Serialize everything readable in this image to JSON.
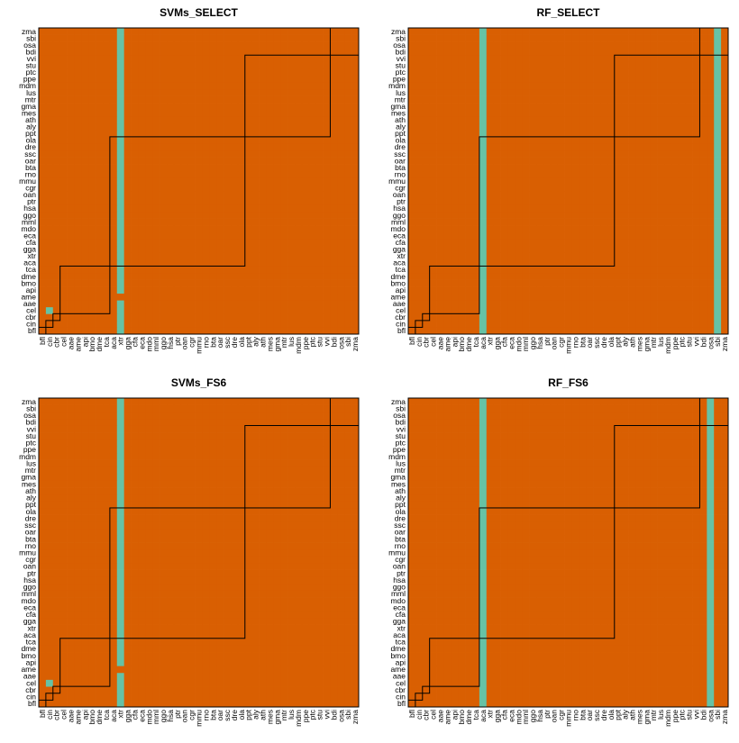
{
  "figure": {
    "colors": {
      "zero": "#d95f02",
      "one": "#66c2a5",
      "frame": "#000000",
      "background": "#ffffff"
    },
    "species": [
      "bfl",
      "cin",
      "cbr",
      "cel",
      "aae",
      "ame",
      "api",
      "bmo",
      "dme",
      "tca",
      "aca",
      "xtr",
      "gga",
      "cfa",
      "eca",
      "mdo",
      "mml",
      "ggo",
      "hsa",
      "ptr",
      "oan",
      "cgr",
      "mmu",
      "rno",
      "bta",
      "oar",
      "ssc",
      "dre",
      "ola",
      "ppt",
      "aly",
      "ath",
      "mes",
      "gma",
      "mtr",
      "lus",
      "mdm",
      "ppe",
      "ptc",
      "stu",
      "vvi",
      "bdi",
      "osa",
      "sbi",
      "zma"
    ]
  },
  "chart_data": [
    {
      "type": "heatmap",
      "title": "SVMs_SELECT",
      "xlabel": "",
      "ylabel": "",
      "legend": "none",
      "grid": false,
      "clades": [
        [
          0,
          0
        ],
        [
          1,
          1
        ],
        [
          2,
          2
        ],
        [
          3,
          9
        ],
        [
          10,
          28
        ],
        [
          29,
          40
        ],
        [
          41,
          44
        ]
      ],
      "color_values": {
        "zero": "#d95f02",
        "one": "#66c2a5"
      },
      "rows": [
        "000000000001000000000000000000000000000000000",
        "000000000001000000000000000000000000000000000",
        "000000000001000000000000000000000000000000000",
        "010000000001000000000000000000000000000000000",
        "000000000001000000000000000000000000000000000",
        "000000000000000000000000000000000000000000000",
        "000000000001000000000000000000000000000000000",
        "000000000001000000000000000000000000000000000",
        "000000000001000000000000000000000000000000000",
        "000000000001000000000000000000000000000000000",
        "000000000001000000000000000000000000000000000",
        "000000000001000000000000000000000000000000000",
        "000000000001000000000000000000000000000000000",
        "000000000001000000000000000000000000000000000",
        "000000000001000000000000000000000000000000000",
        "000000000001000000000000000000000000000000000",
        "000000000001000000000000000000000000000000000",
        "000000000001000000000000000000000000000000000",
        "000000000001000000000000000000000000000000000",
        "000000000001000000000000000000000000000000000",
        "000000000001000000000000000000000000000000000",
        "000000000001000000000000000000000000000000000",
        "000000000001000000000000000000000000000000000",
        "000000000001000000000000000000000000000000000",
        "000000000001000000000000000000000000000000000",
        "000000000001000000000000000000000000000000000",
        "000000000001000000000000000000000000000000000",
        "000000000001000000000000000000000000000000000",
        "000000000001000000000000000000000000000000000",
        "000000000001000000000000000000000000000000000",
        "000000000001000000000000000000000000000000000",
        "000000000001000000000000000000000000000000000",
        "000000000001000000000000000000000000000000000",
        "000000000001000000000000000000000000000000000",
        "000000000001000000000000000000000000000000000",
        "000000000001000000000000000000000000000000000",
        "000000000001000000000000000000000000000000000",
        "000000000001000000000000000000000000000000000",
        "000000000001000000000000000000000000000000000",
        "000000000001000000000000000000000000000000000",
        "000000000001000000000000000000000000000000000",
        "000000000001000000000000000000000000000000000",
        "000000000001000000000000000000000000000000000",
        "000000000001000000000000000000000000000000000",
        "000000000001000000000000000000000000000000000"
      ]
    },
    {
      "type": "heatmap",
      "title": "RF_SELECT",
      "xlabel": "",
      "ylabel": "",
      "legend": "none",
      "grid": false,
      "clades": [
        [
          0,
          0
        ],
        [
          1,
          1
        ],
        [
          2,
          2
        ],
        [
          3,
          9
        ],
        [
          10,
          28
        ],
        [
          29,
          40
        ],
        [
          41,
          44
        ]
      ],
      "color_values": {
        "zero": "#d95f02",
        "one": "#66c2a5"
      },
      "rows": [
        "000000000010000000000000000000000000000000010",
        "000000000010000000000000000000000000000000010",
        "000000000010000000000000000000000000000000010",
        "000000000010000000000000000000000000000000010",
        "000000000010000000000000000000000000000000010",
        "000000000010000000000000000000000000000000010",
        "000000000010000000000000000000000000000000010",
        "000000000010000000000000000000000000000000010",
        "000000000010000000000000000000000000000000010",
        "000000000010000000000000000000000000000000010",
        "000000000010000000000000000000000000000000010",
        "000000000010000000000000000000000000000000010",
        "000000000010000000000000000000000000000000010",
        "000000000010000000000000000000000000000000010",
        "000000000010000000000000000000000000000000010",
        "000000000010000000000000000000000000000000010",
        "000000000010000000000000000000000000000000010",
        "000000000010000000000000000000000000000000010",
        "000000000010000000000000000000000000000000010",
        "000000000010000000000000000000000000000000010",
        "000000000010000000000000000000000000000000010",
        "000000000010000000000000000000000000000000010",
        "000000000010000000000000000000000000000000010",
        "000000000010000000000000000000000000000000010",
        "000000000010000000000000000000000000000000010",
        "000000000010000000000000000000000000000000010",
        "000000000010000000000000000000000000000000010",
        "000000000010000000000000000000000000000000010",
        "000000000010000000000000000000000000000000010",
        "000000000010000000000000000000000000000000010",
        "000000000010000000000000000000000000000000010",
        "000000000010000000000000000000000000000000010",
        "000000000010000000000000000000000000000000010",
        "000000000010000000000000000000000000000000010",
        "000000000010000000000000000000000000000000010",
        "000000000010000000000000000000000000000000010",
        "000000000010000000000000000000000000000000010",
        "000000000010000000000000000000000000000000010",
        "000000000010000000000000000000000000000000010",
        "000000000010000000000000000000000000000000010",
        "000000000010000000000000000000000000000000010",
        "000000000010000000000000000000000000000000010",
        "000000000010000000000000000000000000000000010",
        "000000000010000000000000000000000000000000010",
        "000000000010000000000000000000000000000000010"
      ]
    },
    {
      "type": "heatmap",
      "title": "SVMs_FS6",
      "xlabel": "",
      "ylabel": "",
      "legend": "none",
      "grid": false,
      "clades": [
        [
          0,
          0
        ],
        [
          1,
          1
        ],
        [
          2,
          2
        ],
        [
          3,
          9
        ],
        [
          10,
          28
        ],
        [
          29,
          40
        ],
        [
          41,
          44
        ]
      ],
      "color_values": {
        "zero": "#d95f02",
        "one": "#66c2a5"
      },
      "rows": [
        "000000000001000000000000000000000000000000000",
        "000000000001000000000000000000000000000000000",
        "000000000001000000000000000000000000000000000",
        "010000000001000000000000000000000000000000000",
        "000000000001000000000000000000000000000000000",
        "000000000000000000000000000000000000000000000",
        "000000000001000000000000000000000000000000000",
        "000000000001000000000000000000000000000000000",
        "000000000001000000000000000000000000000000000",
        "000000000001000000000000000000000000000000000",
        "000000000001000000000000000000000000000000000",
        "000000000001000000000000000000000000000000000",
        "000000000001000000000000000000000000000000000",
        "000000000001000000000000000000000000000000000",
        "000000000001000000000000000000000000000000000",
        "000000000001000000000000000000000000000000000",
        "000000000001000000000000000000000000000000000",
        "000000000001000000000000000000000000000000000",
        "000000000001000000000000000000000000000000000",
        "000000000001000000000000000000000000000000000",
        "000000000001000000000000000000000000000000000",
        "000000000001000000000000000000000000000000000",
        "000000000001000000000000000000000000000000000",
        "000000000001000000000000000000000000000000000",
        "000000000001000000000000000000000000000000000",
        "000000000001000000000000000000000000000000000",
        "000000000001000000000000000000000000000000000",
        "000000000001000000000000000000000000000000000",
        "000000000001000000000000000000000000000000000",
        "000000000001000000000000000000000000000000000",
        "000000000001000000000000000000000000000000000",
        "000000000001000000000000000000000000000000000",
        "000000000001000000000000000000000000000000000",
        "000000000001000000000000000000000000000000000",
        "000000000001000000000000000000000000000000000",
        "000000000001000000000000000000000000000000000",
        "000000000001000000000000000000000000000000000",
        "000000000001000000000000000000000000000000000",
        "000000000001000000000000000000000000000000000",
        "000000000001000000000000000000000000000000000",
        "000000000001000000000000000000000000000000000",
        "000000000001000000000000000000000000000000000",
        "000000000001000000000000000000000000000000000",
        "000000000001000000000000000000000000000000000",
        "000000000001000000000000000000000000000000000"
      ]
    },
    {
      "type": "heatmap",
      "title": "RF_FS6",
      "xlabel": "",
      "ylabel": "",
      "legend": "none",
      "grid": false,
      "clades": [
        [
          0,
          0
        ],
        [
          1,
          1
        ],
        [
          2,
          2
        ],
        [
          3,
          9
        ],
        [
          10,
          28
        ],
        [
          29,
          40
        ],
        [
          41,
          44
        ]
      ],
      "color_values": {
        "zero": "#d95f02",
        "one": "#66c2a5"
      },
      "rows": [
        "000000000010000000000000000000000000000000100",
        "000000000010000000000000000000000000000000100",
        "000000000010000000000000000000000000000000100",
        "000000000010000000000000000000000000000000100",
        "000000000010000000000000000000000000000000100",
        "000000000010000000000000000000000000000000100",
        "000000000010000000000000000000000000000000100",
        "000000000010000000000000000000000000000000100",
        "000000000010000000000000000000000000000000100",
        "000000000010000000000000000000000000000000100",
        "000000000010000000000000000000000000000000100",
        "000000000010000000000000000000000000000000100",
        "000000000010000000000000000000000000000000100",
        "000000000010000000000000000000000000000000100",
        "000000000010000000000000000000000000000000100",
        "000000000010000000000000000000000000000000100",
        "000000000010000000000000000000000000000000100",
        "000000000010000000000000000000000000000000100",
        "000000000010000000000000000000000000000000100",
        "000000000010000000000000000000000000000000100",
        "000000000010000000000000000000000000000000100",
        "000000000010000000000000000000000000000000100",
        "000000000010000000000000000000000000000000100",
        "000000000010000000000000000000000000000000100",
        "000000000010000000000000000000000000000000100",
        "000000000010000000000000000000000000000000100",
        "000000000010000000000000000000000000000000100",
        "000000000010000000000000000000000000000000100",
        "000000000010000000000000000000000000000000100",
        "000000000010000000000000000000000000000000100",
        "000000000010000000000000000000000000000000100",
        "000000000010000000000000000000000000000000100",
        "000000000010000000000000000000000000000000100",
        "000000000010000000000000000000000000000000100",
        "000000000010000000000000000000000000000000100",
        "000000000010000000000000000000000000000000100",
        "000000000010000000000000000000000000000000100",
        "000000000010000000000000000000000000000000100",
        "000000000010000000000000000000000000000000100",
        "000000000010000000000000000000000000000000100",
        "000000000010000000000000000000000000000000100",
        "000000000010000000000000000000000000000000100",
        "000000000010000000000000000000000000000000100",
        "000000000010000000000000000000000000000000100",
        "000000000010000000000000000000000000000000100"
      ]
    }
  ]
}
